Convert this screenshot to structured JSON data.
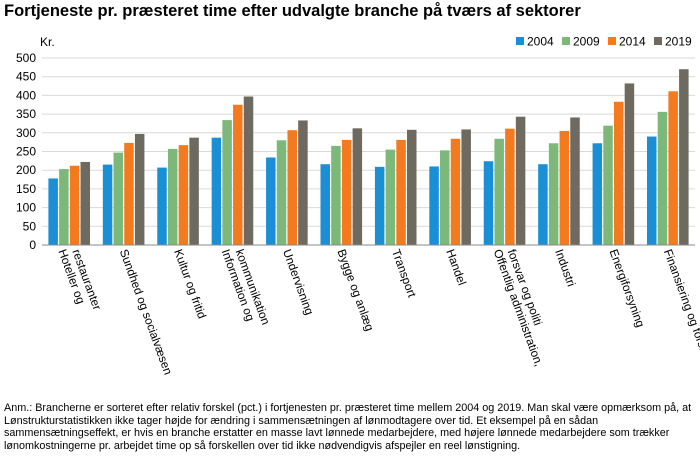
{
  "title": "Fortjeneste pr. præsteret time efter udvalgte branche på tværs af sektorer",
  "note": "Anm.: Brancherne er sorteret efter relativ forskel (pct.) i fortjenesten pr. præsteret time mellem 2004 og 2019. Man skal være opmærksom på, at Lønstrukturstatistikken ikke tager højde for ændring i sammensætningen af lønmodtagere over tid. Et eksempel på en sådan sammensætningseffekt, er hvis en branche erstatter en masse lavt lønnede medarbejdere, med højere lønnede medarbejdere som trækker lønomkostningerne pr. arbejdet time op så forskellen over tid ikke nødvendigvis afspejler en reel lønstigning.",
  "chart_data": {
    "type": "bar",
    "ylabel": "Kr.",
    "ylim": [
      0,
      500
    ],
    "yticks": [
      0,
      50,
      100,
      150,
      200,
      250,
      300,
      350,
      400,
      450,
      500
    ],
    "grid": true,
    "legend_position": "top-right",
    "categories": [
      [
        "Hoteller og",
        "restauranter"
      ],
      [
        "Sundhed og socialvæsen"
      ],
      [
        "Kultur og fritid"
      ],
      [
        "Information og",
        "kommunikation"
      ],
      [
        "Undervisning"
      ],
      [
        "Bygge og anlæg"
      ],
      [
        "Transport"
      ],
      [
        "Handel"
      ],
      [
        "Offentlig administration,",
        "forsvar og politi"
      ],
      [
        "Industri"
      ],
      [
        "Energiforsyning"
      ],
      [
        "Finansiering og forsikring"
      ]
    ],
    "series": [
      {
        "name": "2004",
        "color": "#1a8fd6",
        "values": [
          178,
          215,
          207,
          287,
          234,
          216,
          209,
          210,
          224,
          216,
          272,
          290
        ]
      },
      {
        "name": "2009",
        "color": "#7cb87a",
        "values": [
          203,
          247,
          257,
          334,
          280,
          265,
          255,
          253,
          284,
          272,
          319,
          356
        ]
      },
      {
        "name": "2014",
        "color": "#f47a1f",
        "values": [
          212,
          273,
          267,
          375,
          307,
          281,
          281,
          284,
          311,
          305,
          383,
          411
        ]
      },
      {
        "name": "2019",
        "color": "#6e6a60",
        "values": [
          222,
          297,
          287,
          397,
          333,
          312,
          308,
          309,
          343,
          341,
          432,
          470
        ]
      }
    ]
  }
}
